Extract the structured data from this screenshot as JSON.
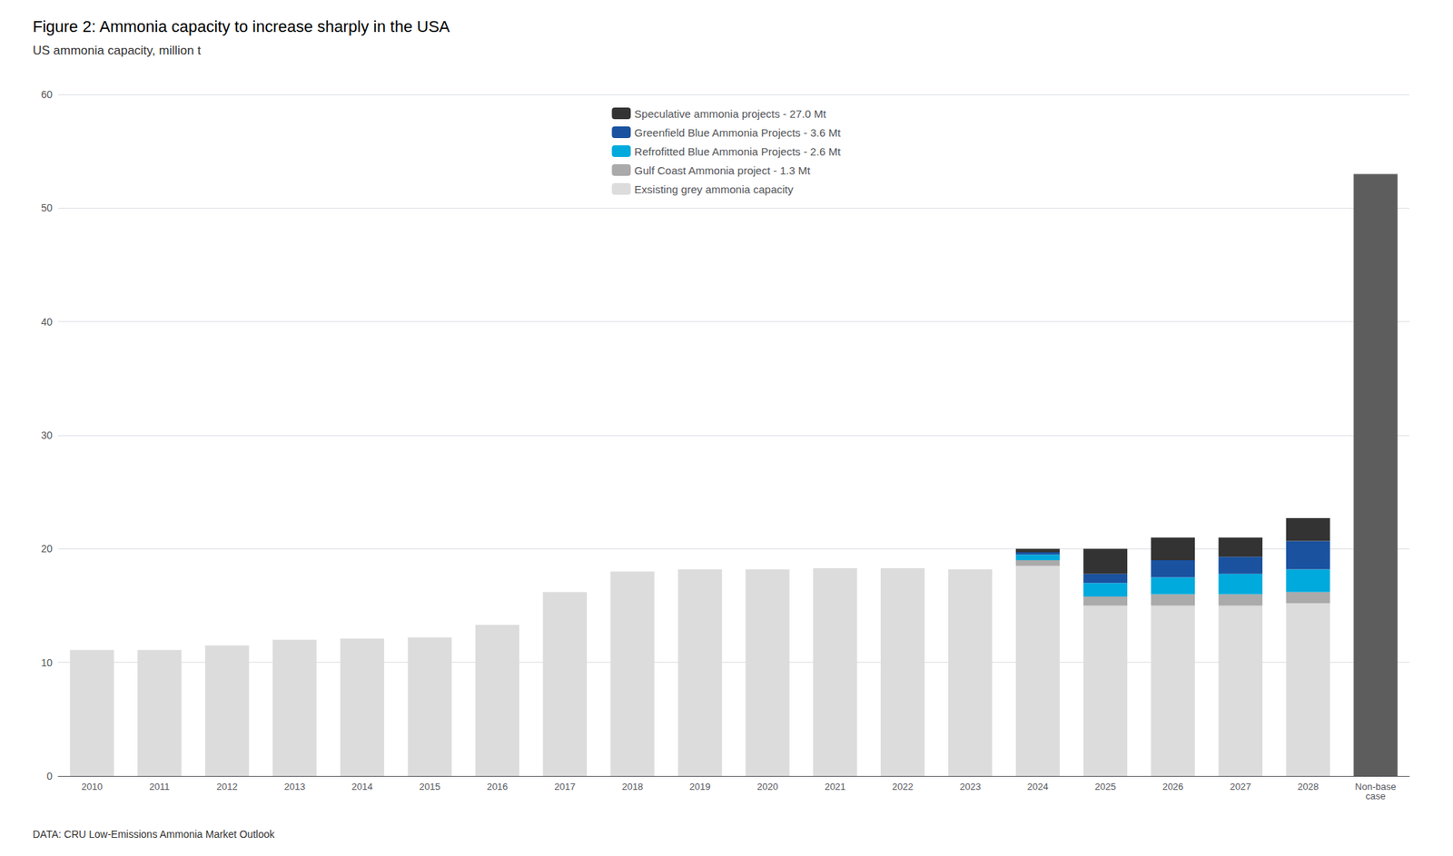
{
  "chart_data": {
    "type": "bar",
    "title": "Figure 2: Ammonia capacity to increase sharply in the USA",
    "subtitle": "US ammonia capacity, million t",
    "source": "DATA: CRU Low-Emissions Ammonia Market Outlook",
    "categories": [
      "2010",
      "2011",
      "2012",
      "2013",
      "2014",
      "2015",
      "2016",
      "2017",
      "2018",
      "2019",
      "2020",
      "2021",
      "2022",
      "2023",
      "2024",
      "2025",
      "2026",
      "2027",
      "2028",
      "Non-base\ncase"
    ],
    "stacked": true,
    "series": [
      {
        "name": "Exsisting grey ammonia capacity",
        "color": "#dcdcdc",
        "values": [
          11.1,
          11.1,
          11.5,
          12.0,
          12.1,
          12.2,
          13.3,
          16.2,
          18.0,
          18.2,
          18.2,
          18.3,
          18.3,
          18.2,
          18.5,
          15.0,
          15.0,
          15.0,
          15.2,
          null
        ]
      },
      {
        "name": "Gulf Coast Ammonia project - 1.3 Mt",
        "color": "#aaaaaa",
        "values": [
          0,
          0,
          0,
          0,
          0,
          0,
          0,
          0,
          0,
          0,
          0,
          0,
          0,
          0,
          0.5,
          0.8,
          1.0,
          1.0,
          1.0,
          null
        ]
      },
      {
        "name": "Refrofitted Blue Ammonia Projects - 2.6 Mt",
        "color": "#00aadd",
        "values": [
          0,
          0,
          0,
          0,
          0,
          0,
          0,
          0,
          0,
          0,
          0,
          0,
          0,
          0,
          0.5,
          1.2,
          1.5,
          1.8,
          2.0,
          null
        ]
      },
      {
        "name": "Greenfield Blue Ammonia Projects - 3.6 Mt",
        "color": "#1a52a0",
        "values": [
          0,
          0,
          0,
          0,
          0,
          0,
          0,
          0,
          0,
          0,
          0,
          0,
          0,
          0,
          0.2,
          0.8,
          1.5,
          1.5,
          2.5,
          null
        ]
      },
      {
        "name": "Speculative ammonia projects - 27.0 Mt",
        "color": "#333333",
        "values": [
          0,
          0,
          0,
          0,
          0,
          0,
          0,
          0,
          0,
          0,
          0,
          0,
          0,
          0,
          0.3,
          2.2,
          2.0,
          1.7,
          2.0,
          null
        ]
      },
      {
        "color": "#5d5d5d",
        "values": [
          null,
          null,
          null,
          null,
          null,
          null,
          null,
          null,
          null,
          null,
          null,
          null,
          null,
          null,
          null,
          null,
          null,
          null,
          null,
          53.0
        ]
      }
    ],
    "ylim": [
      0,
      60
    ],
    "yticks": [
      0,
      10,
      20,
      30,
      40,
      50,
      60
    ],
    "grid": true,
    "legend": "upper center"
  }
}
